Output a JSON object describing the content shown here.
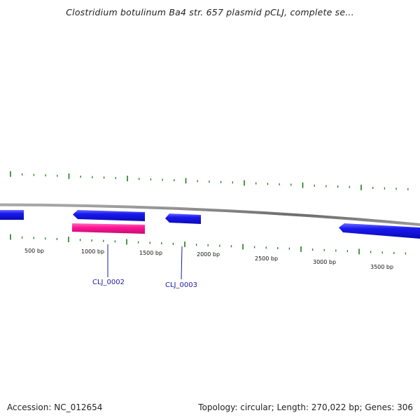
{
  "title": "Clostridium botulinum Ba4 str. 657 plasmid pCLJ, complete se...",
  "footer": {
    "accession": "Accession: NC_012654",
    "summary": "Topology: circular; Length: 270,022 bp; Genes: 306"
  },
  "colors": {
    "backbone": "#7a7a7a",
    "tick": "#1e7d1e",
    "gene_forward": "#1212e6",
    "gene_highlight": "#ff1493",
    "gene_label": "#1a1aa6"
  },
  "scale_labels": [
    "500 bp",
    "1000 bp",
    "1500 bp",
    "2000 bp",
    "2500 bp",
    "3000 bp",
    "3500 bp"
  ],
  "gene_labels": [
    "CLJ_0002",
    "CLJ_0003"
  ]
}
